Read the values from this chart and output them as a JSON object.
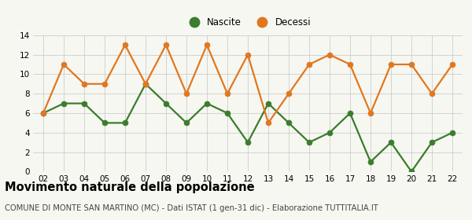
{
  "x_labels": [
    "02",
    "03",
    "04",
    "05",
    "06",
    "07",
    "08",
    "09",
    "10",
    "11",
    "12",
    "13",
    "14",
    "15",
    "16",
    "17",
    "18",
    "19",
    "20",
    "21",
    "22"
  ],
  "nascite": [
    6,
    7,
    7,
    5,
    5,
    9,
    7,
    5,
    7,
    6,
    3,
    7,
    5,
    3,
    4,
    6,
    1,
    3,
    0,
    3,
    4
  ],
  "decessi": [
    6,
    11,
    9,
    9,
    13,
    9,
    13,
    8,
    13,
    8,
    12,
    5,
    8,
    11,
    12,
    11,
    6,
    11,
    11,
    8,
    11
  ],
  "nascite_color": "#3a7d2c",
  "decessi_color": "#e07820",
  "background_color": "#f7f7f2",
  "grid_color": "#cccccc",
  "ylim": [
    0,
    14
  ],
  "yticks": [
    0,
    2,
    4,
    6,
    8,
    10,
    12,
    14
  ],
  "title": "Movimento naturale della popolazione",
  "subtitle": "COMUNE DI MONTE SAN MARTINO (MC) - Dati ISTAT (1 gen-31 dic) - Elaborazione TUTTITALIA.IT",
  "title_fontsize": 10.5,
  "subtitle_fontsize": 7.2,
  "legend_nascite": "Nascite",
  "legend_decessi": "Decessi",
  "marker_size": 5,
  "line_width": 1.6
}
